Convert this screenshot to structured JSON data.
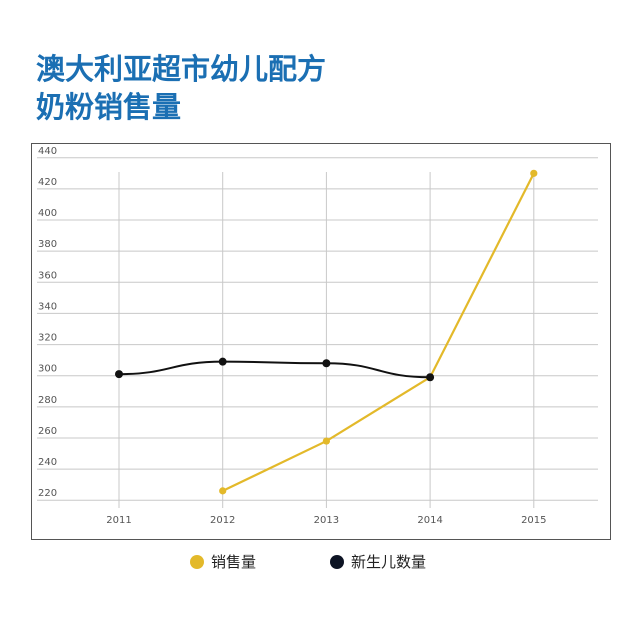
{
  "title_lines": [
    "澳大利亚超市幼儿配方",
    "奶粉销售量"
  ],
  "chart_data": {
    "type": "line",
    "x": [
      "2011",
      "2012",
      "2013",
      "2014",
      "2015"
    ],
    "ylim": [
      215,
      445
    ],
    "yticks": [
      220,
      240,
      260,
      280,
      300,
      320,
      340,
      360,
      380,
      400,
      420,
      440
    ],
    "grid": true,
    "legend_position": "bottom",
    "series": [
      {
        "name": "销售量",
        "color": "#e3b92a",
        "values": [
          null,
          226,
          258,
          299,
          430
        ]
      },
      {
        "name": "新生儿数量",
        "color": "#111111",
        "values": [
          301,
          309,
          308,
          299,
          null
        ]
      }
    ]
  }
}
